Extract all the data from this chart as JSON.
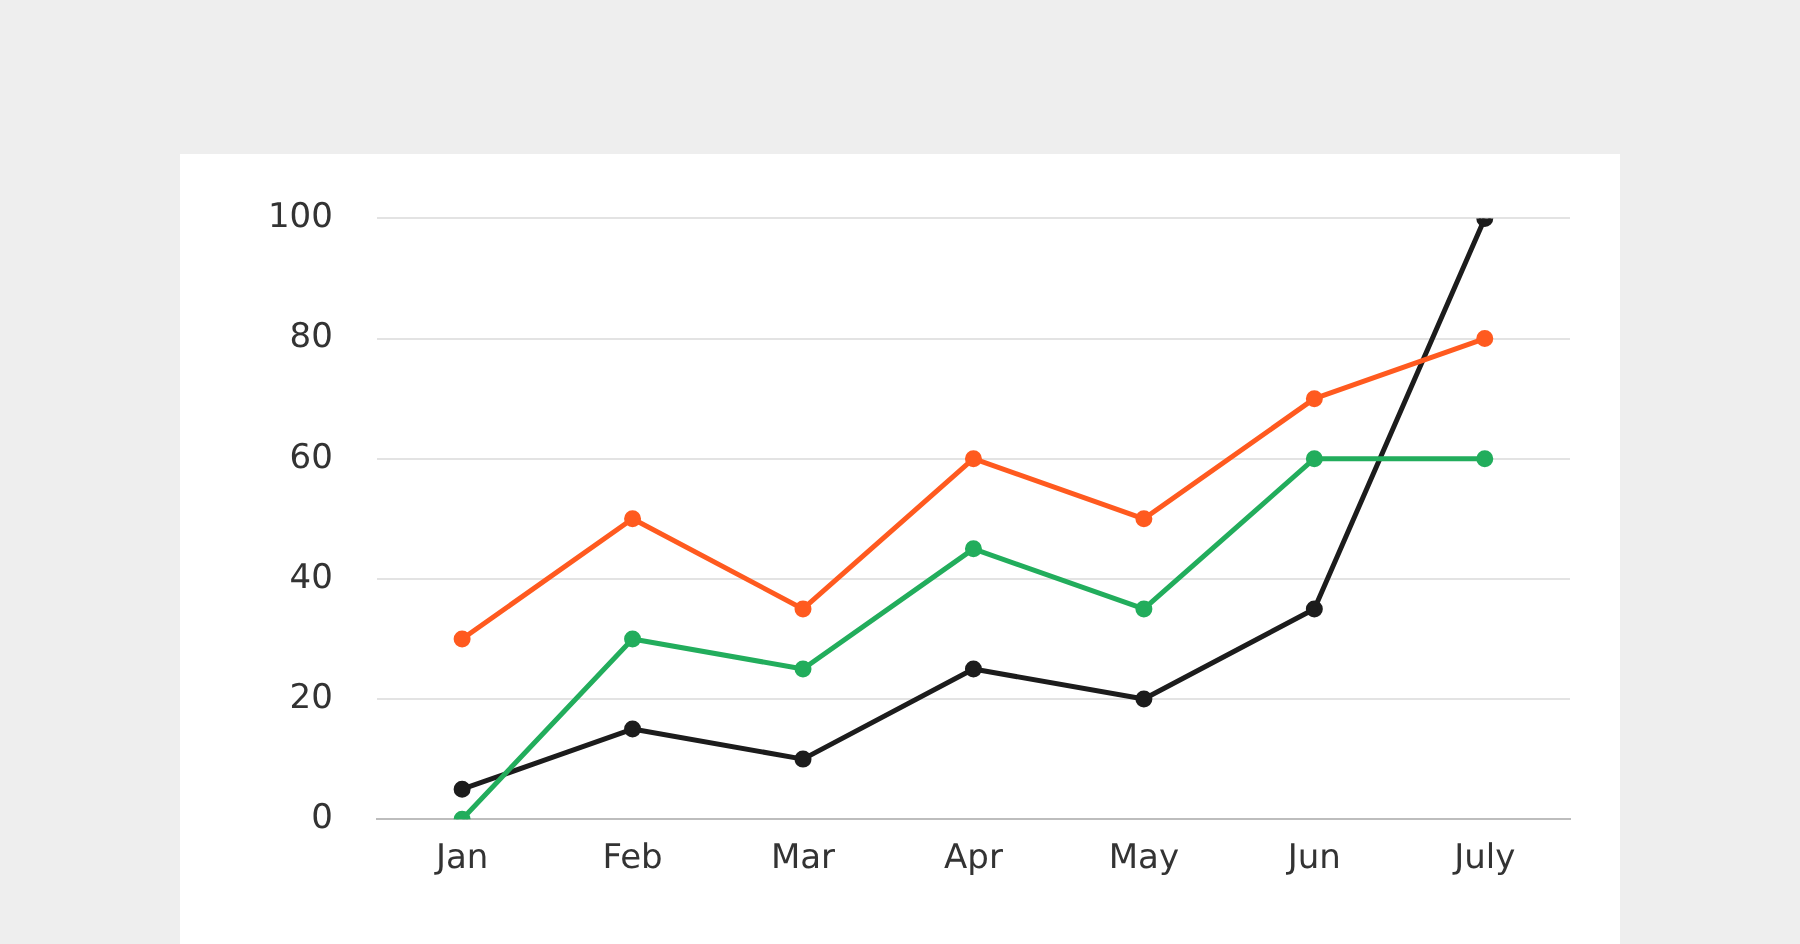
{
  "chart_data": {
    "type": "line",
    "categories": [
      "Jan",
      "Feb",
      "Mar",
      "Apr",
      "May",
      "Jun",
      "July"
    ],
    "series": [
      {
        "color": "#ff5a1f",
        "values": [
          30,
          50,
          35,
          60,
          50,
          70,
          80
        ]
      },
      {
        "color": "#22ad5c",
        "values": [
          0,
          30,
          25,
          45,
          35,
          60,
          60
        ]
      },
      {
        "color": "#1c1c1c",
        "values": [
          5,
          15,
          10,
          25,
          20,
          35,
          100
        ]
      }
    ],
    "ylim": [
      0,
      100
    ],
    "yticks": [
      0,
      20,
      40,
      60,
      80,
      100
    ],
    "grid": "y",
    "legend": false,
    "marker": "circle",
    "line_style": "solid"
  }
}
